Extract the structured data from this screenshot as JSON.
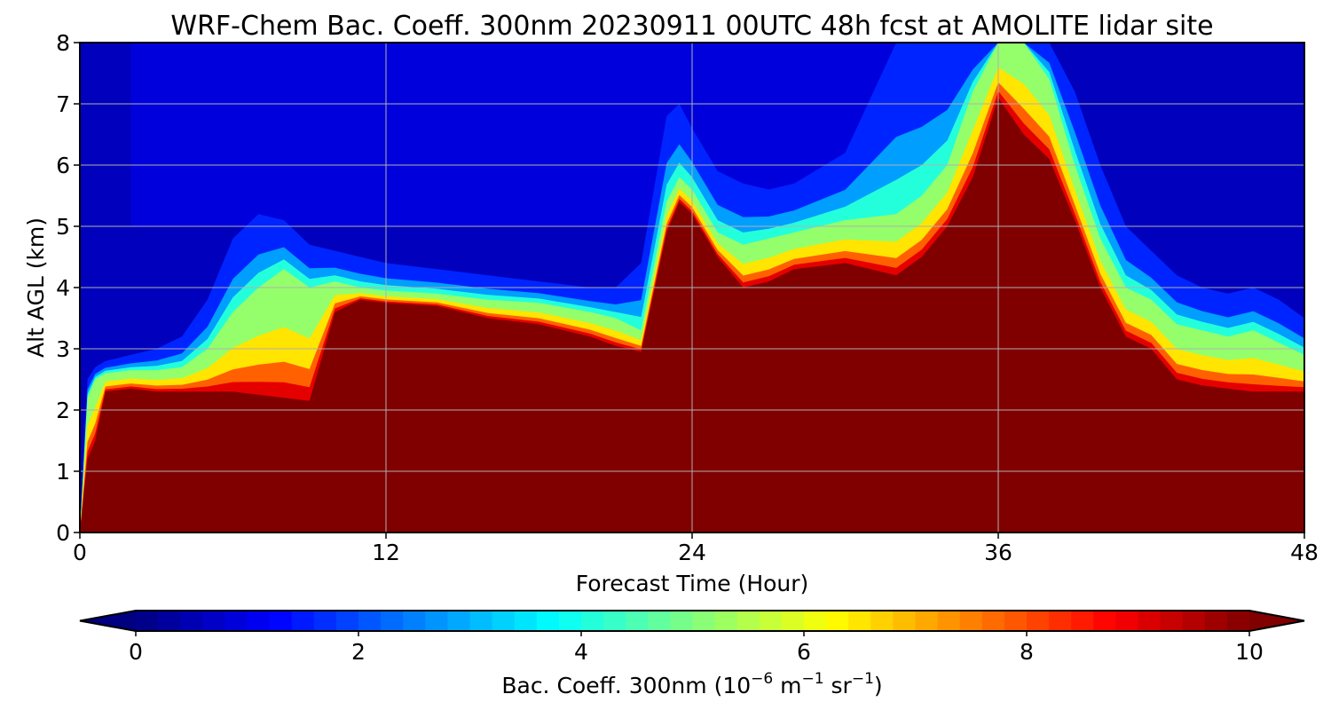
{
  "chart_data": {
    "type": "heatmap",
    "title": "WRF-Chem Bac. Coeff. 300nm  20230911 00UTC 48h fcst at AMOLITE lidar site",
    "xlabel": "Forecast Time (Hour)",
    "ylabel": "Alt AGL (km)",
    "xlim": [
      0,
      48
    ],
    "ylim": [
      0,
      8
    ],
    "xticks": [
      "0",
      "12",
      "24",
      "36",
      "48"
    ],
    "yticks": [
      "0",
      "1",
      "2",
      "3",
      "4",
      "5",
      "6",
      "7",
      "8"
    ],
    "grid": true,
    "colorbar": {
      "label_main": "Bac. Coeff. 300nm  (10",
      "label_exp1": "−6",
      "label_mid": " m",
      "label_exp2": "−1",
      "label_mid2": " sr",
      "label_exp3": "−1",
      "label_end": ")",
      "min": 0,
      "max": 10,
      "levels": 50,
      "ticks": [
        "0",
        "2",
        "4",
        "6",
        "8",
        "10"
      ],
      "extend": "both",
      "colormap": "jet"
    },
    "profiles": {
      "hours": [
        0,
        0.3,
        0.6,
        1,
        2,
        3,
        4,
        5,
        6,
        7,
        8,
        9,
        10,
        11,
        12,
        14,
        16,
        18,
        20,
        21,
        22,
        23,
        23.5,
        24,
        25,
        26,
        27,
        28,
        30,
        32,
        33,
        34,
        35,
        36,
        37,
        38,
        39,
        40,
        41,
        42,
        43,
        44,
        45,
        46,
        47,
        48
      ],
      "top_saturation_km": [
        0,
        1.2,
        1.5,
        2.3,
        2.35,
        2.3,
        2.3,
        2.3,
        2.3,
        2.25,
        2.2,
        2.15,
        3.6,
        3.8,
        3.75,
        3.7,
        3.5,
        3.4,
        3.2,
        3.05,
        2.95,
        4.9,
        5.4,
        5.2,
        4.5,
        4.0,
        4.1,
        4.3,
        4.4,
        4.2,
        4.5,
        5.0,
        5.8,
        7.1,
        6.5,
        6.1,
        5.1,
        4.0,
        3.2,
        3.0,
        2.5,
        2.4,
        2.35,
        2.3,
        2.3,
        2.3
      ],
      "top_green_km": [
        0,
        2.2,
        2.5,
        2.6,
        2.65,
        2.65,
        2.7,
        3.0,
        3.6,
        4.0,
        4.3,
        4.0,
        4.1,
        4.0,
        3.95,
        3.9,
        3.8,
        3.75,
        3.6,
        3.5,
        3.3,
        5.4,
        5.8,
        5.6,
        4.9,
        4.7,
        4.8,
        4.9,
        5.1,
        5.2,
        5.5,
        6.0,
        7.2,
        8.0,
        8.0,
        7.4,
        6.0,
        4.8,
        4.0,
        3.8,
        3.4,
        3.3,
        3.2,
        3.3,
        3.1,
        2.9
      ],
      "top_blue_km": [
        0,
        2.5,
        2.7,
        2.8,
        2.9,
        3.0,
        3.2,
        3.8,
        4.8,
        5.2,
        5.1,
        4.7,
        4.6,
        4.5,
        4.4,
        4.3,
        4.2,
        4.1,
        4.0,
        4.0,
        4.4,
        6.8,
        7.0,
        6.6,
        5.9,
        5.7,
        5.6,
        5.7,
        6.2,
        8.0,
        8.0,
        8.0,
        8.0,
        8.0,
        8.0,
        8.0,
        7.2,
        6.0,
        5.0,
        4.6,
        4.2,
        4.0,
        3.9,
        4.0,
        3.8,
        3.5
      ]
    }
  }
}
